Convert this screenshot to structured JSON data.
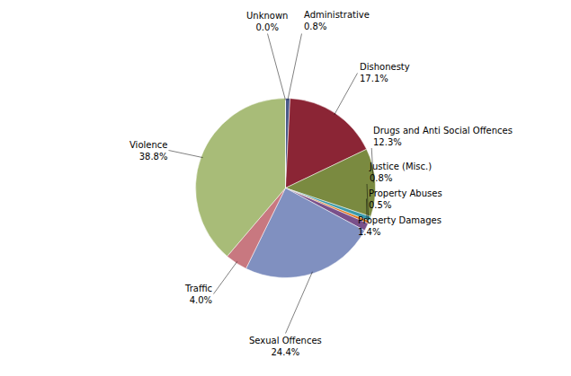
{
  "chart_data": {
    "type": "pie",
    "categories": [
      "Administrative",
      "Dishonesty",
      "Drugs and Anti Social Offences",
      "Justice (Misc.)",
      "Property Abuses",
      "Property Damages",
      "Sexual Offences",
      "Traffic",
      "Violence",
      "Unknown"
    ],
    "values": [
      0.8,
      17.1,
      12.3,
      0.8,
      0.5,
      1.4,
      24.4,
      4.0,
      38.8,
      0.0
    ],
    "value_labels": [
      "0.8%",
      "17.1%",
      "12.3%",
      "0.8%",
      "0.5%",
      "1.4%",
      "24.4%",
      "4.0%",
      "38.8%",
      "0.0%"
    ],
    "colors": [
      "#4a5a8a",
      "#8b2535",
      "#7a8a40",
      "#3a9aaa",
      "#e07820",
      "#7a508a",
      "#8090c0",
      "#c87880",
      "#a8bc78",
      "#4a5a8a"
    ],
    "data_labels": true
  }
}
